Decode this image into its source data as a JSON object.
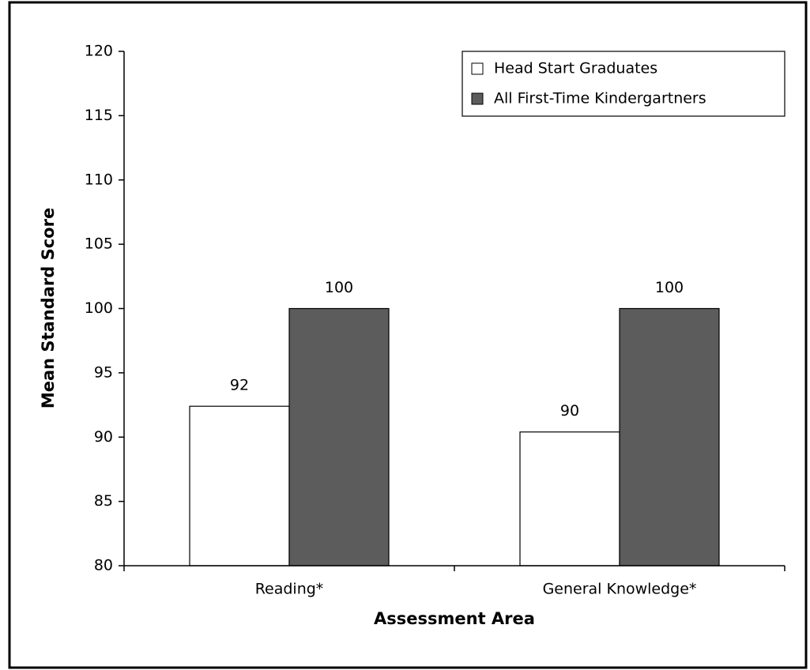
{
  "chart_data": {
    "type": "bar",
    "x_label": "Assessment Area",
    "y_label": "Mean Standard Score",
    "categories": [
      "Reading*",
      "General Knowledge*"
    ],
    "series": [
      {
        "name": "Head Start Graduates",
        "color": "#ffffff",
        "values": [
          92.4,
          90.4
        ],
        "value_labels": [
          "92",
          "90"
        ]
      },
      {
        "name": "All First-Time Kindergartners",
        "color": "#5c5c5c",
        "values": [
          100,
          100
        ],
        "value_labels": [
          "100",
          "100"
        ]
      }
    ],
    "ylim": [
      80,
      120
    ],
    "yticks": [
      80,
      85,
      90,
      95,
      100,
      105,
      110,
      115,
      120
    ],
    "grid": false,
    "legend": "top-right"
  }
}
